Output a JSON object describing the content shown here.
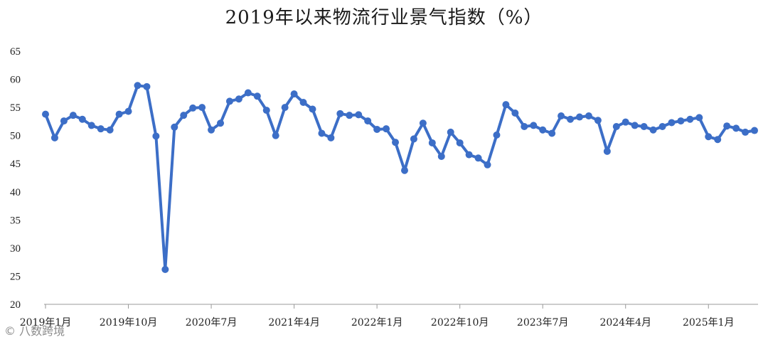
{
  "chart_data": {
    "type": "line",
    "title": "2019年以来物流行业景气指数（%）",
    "xlabel": "",
    "ylabel": "",
    "ylim": [
      20,
      65
    ],
    "yticks": [
      20,
      25,
      30,
      35,
      40,
      45,
      50,
      55,
      60,
      65
    ],
    "grid": false,
    "x_tick_labels": [
      "2019年1月",
      "2019年10月",
      "2020年7月",
      "2021年4月",
      "2022年1月",
      "2022年10月",
      "2023年7月",
      "2024年4月",
      "2025年1月"
    ],
    "x_tick_index": [
      0,
      9,
      18,
      27,
      36,
      45,
      54,
      63,
      72
    ],
    "color": "#3c6ec7",
    "series": [
      {
        "values": [
          53.8,
          49.6,
          52.6,
          53.6,
          52.9,
          51.8,
          51.2,
          51.0,
          53.8,
          54.3,
          58.9,
          58.7,
          49.9,
          26.2,
          51.5,
          53.6,
          54.9,
          55.0,
          51.0,
          52.2,
          56.1,
          56.5,
          57.6,
          57.0,
          54.5,
          50.0,
          55.0,
          57.4,
          55.9,
          54.7,
          50.4,
          49.6,
          53.9,
          53.6,
          53.7,
          52.6,
          51.1,
          51.2,
          48.8,
          43.8,
          49.4,
          52.2,
          48.7,
          46.3,
          50.6,
          48.7,
          46.6,
          46.0,
          44.8,
          50.1,
          55.5,
          54.0,
          51.6,
          51.8,
          51.0,
          50.4,
          53.5,
          52.9,
          53.3,
          53.5,
          52.7,
          47.2,
          51.6,
          52.4,
          51.8,
          51.6,
          51.0,
          51.6,
          52.3,
          52.6,
          52.9,
          53.2,
          49.8,
          49.3,
          51.7,
          51.3,
          50.6,
          50.9
        ]
      }
    ]
  },
  "watermark": "©  八数跨境"
}
